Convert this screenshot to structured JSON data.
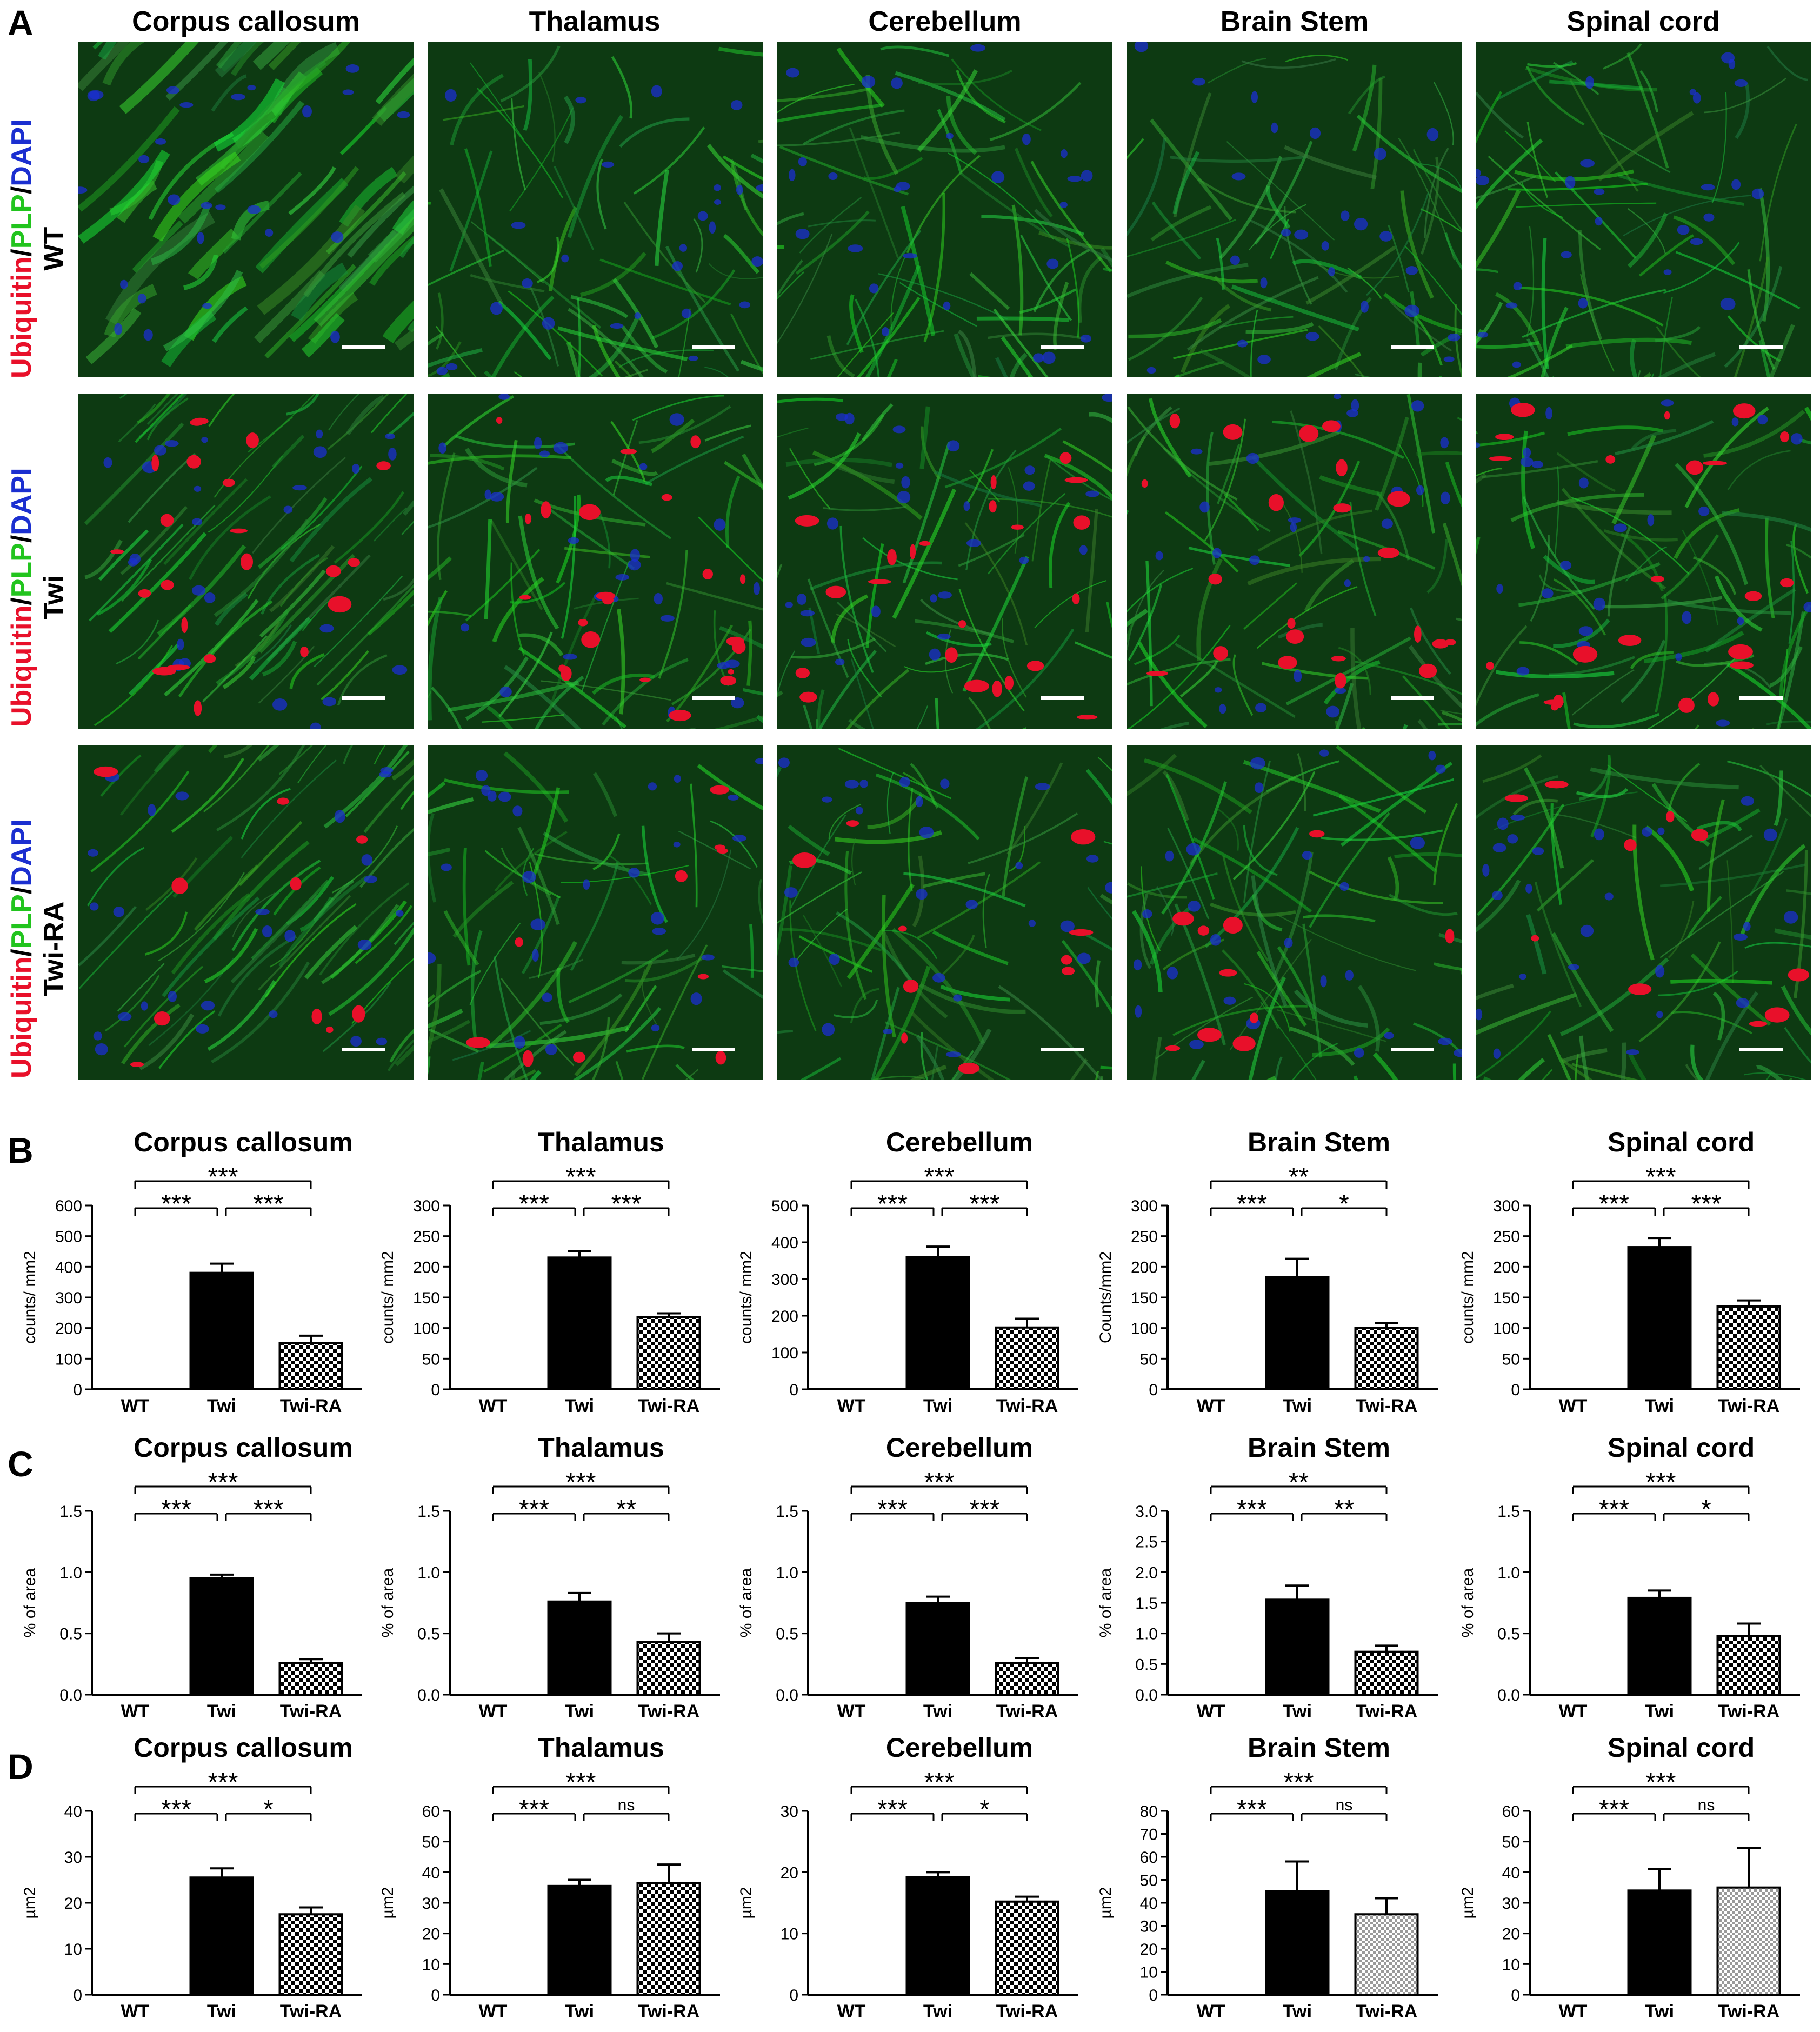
{
  "panel_letters": [
    "A",
    "B",
    "C",
    "D"
  ],
  "regions": [
    "Corpus callosum",
    "Thalamus",
    "Cerebellum",
    "Brain Stem",
    "Spinal cord"
  ],
  "rows": [
    {
      "group": "WT",
      "stain": [
        "Ubiquitin",
        "/",
        "PLP",
        "/",
        "DAPI"
      ]
    },
    {
      "group": "Twi",
      "stain": [
        "Ubiquitin",
        "/",
        "PLP",
        "/",
        "DAPI"
      ]
    },
    {
      "group": "Twi-RA",
      "stain": [
        "Ubiquitin",
        "/",
        "PLP",
        "/",
        "DAPI"
      ]
    }
  ],
  "colors": {
    "ubiquitin": "#e8102a",
    "plp": "#22c41e",
    "dapi": "#1b2fd0",
    "twi_bar": "#000000",
    "twira_fill": "checkerboard"
  },
  "chart_data": [
    {
      "panel": "B",
      "region": "Corpus callosum",
      "type": "bar",
      "ylabel": "counts/ mm2",
      "categories": [
        "WT",
        "Twi",
        "Twi-RA"
      ],
      "values": [
        0,
        380,
        150
      ],
      "errors": [
        0,
        30,
        25
      ],
      "ylim": [
        0,
        600
      ],
      "yticks": [
        "0",
        "100",
        "200",
        "300",
        "400",
        "500",
        "600"
      ],
      "significance": [
        {
          "pair": [
            "WT",
            "Twi"
          ],
          "label": "***"
        },
        {
          "pair": [
            "Twi",
            "Twi-RA"
          ],
          "label": "***"
        },
        {
          "pair": [
            "WT",
            "Twi-RA"
          ],
          "label": "***"
        }
      ]
    },
    {
      "panel": "B",
      "region": "Thalamus",
      "type": "bar",
      "ylabel": "counts/ mm2",
      "categories": [
        "WT",
        "Twi",
        "Twi-RA"
      ],
      "values": [
        0,
        215,
        118
      ],
      "errors": [
        0,
        10,
        6
      ],
      "ylim": [
        0,
        300
      ],
      "yticks": [
        "0",
        "50",
        "100",
        "150",
        "200",
        "250",
        "300"
      ],
      "significance": [
        {
          "pair": [
            "WT",
            "Twi"
          ],
          "label": "***"
        },
        {
          "pair": [
            "Twi",
            "Twi-RA"
          ],
          "label": "***"
        },
        {
          "pair": [
            "WT",
            "Twi-RA"
          ],
          "label": "***"
        }
      ]
    },
    {
      "panel": "B",
      "region": "Cerebellum",
      "type": "bar",
      "ylabel": "counts/ mm2",
      "categories": [
        "WT",
        "Twi",
        "Twi-RA"
      ],
      "values": [
        0,
        360,
        168
      ],
      "errors": [
        0,
        28,
        24
      ],
      "ylim": [
        0,
        500
      ],
      "yticks": [
        "0",
        "100",
        "200",
        "300",
        "400",
        "500"
      ],
      "significance": [
        {
          "pair": [
            "WT",
            "Twi"
          ],
          "label": "***"
        },
        {
          "pair": [
            "Twi",
            "Twi-RA"
          ],
          "label": "***"
        },
        {
          "pair": [
            "WT",
            "Twi-RA"
          ],
          "label": "***"
        }
      ]
    },
    {
      "panel": "B",
      "region": "Brain Stem",
      "type": "bar",
      "ylabel": "Counts/mm2",
      "categories": [
        "WT",
        "Twi",
        "Twi-RA"
      ],
      "values": [
        0,
        183,
        100
      ],
      "errors": [
        0,
        30,
        8
      ],
      "ylim": [
        0,
        300
      ],
      "yticks": [
        "0",
        "50",
        "100",
        "150",
        "200",
        "250",
        "300"
      ],
      "significance": [
        {
          "pair": [
            "WT",
            "Twi"
          ],
          "label": "***"
        },
        {
          "pair": [
            "Twi",
            "Twi-RA"
          ],
          "label": "*"
        },
        {
          "pair": [
            "WT",
            "Twi-RA"
          ],
          "label": "**"
        }
      ]
    },
    {
      "panel": "B",
      "region": "Spinal cord",
      "type": "bar",
      "ylabel": "counts/ mm2",
      "categories": [
        "WT",
        "Twi",
        "Twi-RA"
      ],
      "values": [
        0,
        232,
        135
      ],
      "errors": [
        0,
        15,
        10
      ],
      "ylim": [
        0,
        300
      ],
      "yticks": [
        "0",
        "50",
        "100",
        "150",
        "200",
        "250",
        "300"
      ],
      "significance": [
        {
          "pair": [
            "WT",
            "Twi"
          ],
          "label": "***"
        },
        {
          "pair": [
            "Twi",
            "Twi-RA"
          ],
          "label": "***"
        },
        {
          "pair": [
            "WT",
            "Twi-RA"
          ],
          "label": "***"
        }
      ]
    },
    {
      "panel": "C",
      "region": "Corpus callosum",
      "type": "bar",
      "ylabel": "% of area",
      "categories": [
        "WT",
        "Twi",
        "Twi-RA"
      ],
      "values": [
        0,
        0.95,
        0.26
      ],
      "errors": [
        0,
        0.03,
        0.03
      ],
      "ylim": [
        0,
        1.5
      ],
      "yticks": [
        "0.0",
        "0.5",
        "1.0",
        "1.5"
      ],
      "significance": [
        {
          "pair": [
            "WT",
            "Twi"
          ],
          "label": "***"
        },
        {
          "pair": [
            "Twi",
            "Twi-RA"
          ],
          "label": "***"
        },
        {
          "pair": [
            "WT",
            "Twi-RA"
          ],
          "label": "***"
        }
      ]
    },
    {
      "panel": "C",
      "region": "Thalamus",
      "type": "bar",
      "ylabel": "% of area",
      "categories": [
        "WT",
        "Twi",
        "Twi-RA"
      ],
      "values": [
        0,
        0.76,
        0.43
      ],
      "errors": [
        0,
        0.07,
        0.07
      ],
      "ylim": [
        0,
        1.5
      ],
      "yticks": [
        "0.0",
        "0.5",
        "1.0",
        "1.5"
      ],
      "significance": [
        {
          "pair": [
            "WT",
            "Twi"
          ],
          "label": "***"
        },
        {
          "pair": [
            "Twi",
            "Twi-RA"
          ],
          "label": "**"
        },
        {
          "pair": [
            "WT",
            "Twi-RA"
          ],
          "label": "***"
        }
      ]
    },
    {
      "panel": "C",
      "region": "Cerebellum",
      "type": "bar",
      "ylabel": "% of area",
      "categories": [
        "WT",
        "Twi",
        "Twi-RA"
      ],
      "values": [
        0,
        0.75,
        0.26
      ],
      "errors": [
        0,
        0.05,
        0.04
      ],
      "ylim": [
        0,
        1.5
      ],
      "yticks": [
        "0.0",
        "0.5",
        "1.0",
        "1.5"
      ],
      "significance": [
        {
          "pair": [
            "WT",
            "Twi"
          ],
          "label": "***"
        },
        {
          "pair": [
            "Twi",
            "Twi-RA"
          ],
          "label": "***"
        },
        {
          "pair": [
            "WT",
            "Twi-RA"
          ],
          "label": "***"
        }
      ]
    },
    {
      "panel": "C",
      "region": "Brain Stem",
      "type": "bar",
      "ylabel": "% of area",
      "categories": [
        "WT",
        "Twi",
        "Twi-RA"
      ],
      "values": [
        0,
        1.55,
        0.7
      ],
      "errors": [
        0,
        0.23,
        0.1
      ],
      "ylim": [
        0,
        3.0
      ],
      "yticks": [
        "0.0",
        "0.5",
        "1.0",
        "1.5",
        "2.0",
        "2.5",
        "3.0"
      ],
      "significance": [
        {
          "pair": [
            "WT",
            "Twi"
          ],
          "label": "***"
        },
        {
          "pair": [
            "Twi",
            "Twi-RA"
          ],
          "label": "**"
        },
        {
          "pair": [
            "WT",
            "Twi-RA"
          ],
          "label": "**"
        }
      ]
    },
    {
      "panel": "C",
      "region": "Spinal cord",
      "type": "bar",
      "ylabel": "% of area",
      "categories": [
        "WT",
        "Twi",
        "Twi-RA"
      ],
      "values": [
        0,
        0.79,
        0.48
      ],
      "errors": [
        0,
        0.06,
        0.1
      ],
      "ylim": [
        0,
        1.5
      ],
      "yticks": [
        "0.0",
        "0.5",
        "1.0",
        "1.5"
      ],
      "significance": [
        {
          "pair": [
            "WT",
            "Twi"
          ],
          "label": "***"
        },
        {
          "pair": [
            "Twi",
            "Twi-RA"
          ],
          "label": "*"
        },
        {
          "pair": [
            "WT",
            "Twi-RA"
          ],
          "label": "***"
        }
      ]
    },
    {
      "panel": "D",
      "region": "Corpus callosum",
      "type": "bar",
      "ylabel": "µm2",
      "categories": [
        "WT",
        "Twi",
        "Twi-RA"
      ],
      "values": [
        0,
        25.5,
        17.5
      ],
      "errors": [
        0,
        2,
        1.5
      ],
      "ylim": [
        0,
        40
      ],
      "yticks": [
        "0",
        "10",
        "20",
        "30",
        "40"
      ],
      "significance": [
        {
          "pair": [
            "WT",
            "Twi"
          ],
          "label": "***"
        },
        {
          "pair": [
            "Twi",
            "Twi-RA"
          ],
          "label": "*"
        },
        {
          "pair": [
            "WT",
            "Twi-RA"
          ],
          "label": "***"
        }
      ]
    },
    {
      "panel": "D",
      "region": "Thalamus",
      "type": "bar",
      "ylabel": "µm2",
      "categories": [
        "WT",
        "Twi",
        "Twi-RA"
      ],
      "values": [
        0,
        35.5,
        36.5
      ],
      "errors": [
        0,
        2,
        6
      ],
      "ylim": [
        0,
        60
      ],
      "yticks": [
        "0",
        "10",
        "20",
        "30",
        "40",
        "50",
        "60"
      ],
      "significance": [
        {
          "pair": [
            "WT",
            "Twi"
          ],
          "label": "***"
        },
        {
          "pair": [
            "Twi",
            "Twi-RA"
          ],
          "label": "ns"
        },
        {
          "pair": [
            "WT",
            "Twi-RA"
          ],
          "label": "***"
        }
      ]
    },
    {
      "panel": "D",
      "region": "Cerebellum",
      "type": "bar",
      "ylabel": "µm2",
      "categories": [
        "WT",
        "Twi",
        "Twi-RA"
      ],
      "values": [
        0,
        19.2,
        15.2
      ],
      "errors": [
        0,
        0.8,
        0.8
      ],
      "ylim": [
        0,
        30
      ],
      "yticks": [
        "0",
        "10",
        "20",
        "30"
      ],
      "significance": [
        {
          "pair": [
            "WT",
            "Twi"
          ],
          "label": "***"
        },
        {
          "pair": [
            "Twi",
            "Twi-RA"
          ],
          "label": "*"
        },
        {
          "pair": [
            "WT",
            "Twi-RA"
          ],
          "label": "***"
        }
      ]
    },
    {
      "panel": "D",
      "region": "Brain Stem",
      "type": "bar",
      "ylabel": "µm2",
      "categories": [
        "WT",
        "Twi",
        "Twi-RA"
      ],
      "values": [
        0,
        45,
        35
      ],
      "errors": [
        0,
        13,
        7
      ],
      "ylim": [
        0,
        80
      ],
      "yticks": [
        "0",
        "10",
        "20",
        "30",
        "40",
        "50",
        "60",
        "70",
        "80"
      ],
      "significance": [
        {
          "pair": [
            "WT",
            "Twi"
          ],
          "label": "***"
        },
        {
          "pair": [
            "Twi",
            "Twi-RA"
          ],
          "label": "ns"
        },
        {
          "pair": [
            "WT",
            "Twi-RA"
          ],
          "label": "***"
        }
      ]
    },
    {
      "panel": "D",
      "region": "Spinal cord",
      "type": "bar",
      "ylabel": "µm2",
      "categories": [
        "WT",
        "Twi",
        "Twi-RA"
      ],
      "values": [
        0,
        34,
        35
      ],
      "errors": [
        0,
        7,
        13
      ],
      "ylim": [
        0,
        60
      ],
      "yticks": [
        "0",
        "10",
        "20",
        "30",
        "40",
        "50",
        "60"
      ],
      "significance": [
        {
          "pair": [
            "WT",
            "Twi"
          ],
          "label": "***"
        },
        {
          "pair": [
            "Twi",
            "Twi-RA"
          ],
          "label": "ns"
        },
        {
          "pair": [
            "WT",
            "Twi-RA"
          ],
          "label": "***"
        }
      ]
    }
  ]
}
